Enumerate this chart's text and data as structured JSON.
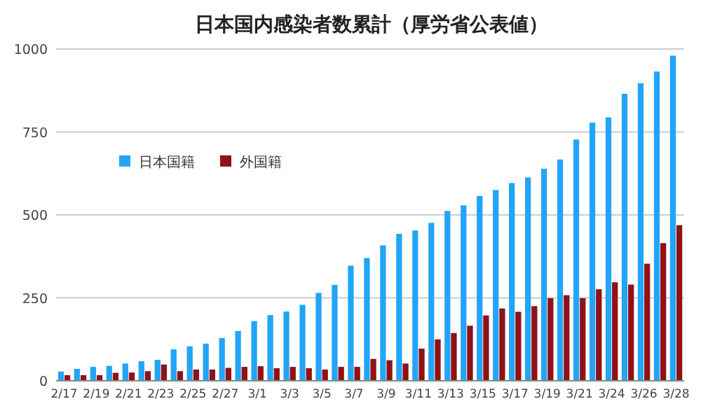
{
  "chart_data": {
    "type": "bar",
    "title": "日本国内感染者数累計（厚労省公表値）",
    "categories": [
      "2/17",
      null,
      "2/19",
      null,
      "2/21",
      null,
      "2/23",
      null,
      "2/25",
      null,
      "2/27",
      null,
      "3/1",
      null,
      "3/3",
      null,
      "3/5",
      null,
      "3/7",
      null,
      "3/9",
      null,
      "3/11",
      null,
      "3/13",
      null,
      "3/15",
      null,
      "3/17",
      null,
      "3/19",
      null,
      "3/21",
      null,
      "3/24",
      null,
      "3/26",
      null,
      "3/28"
    ],
    "series": [
      {
        "name": "日本国籍",
        "color": "#22a5f7",
        "values": [
          28,
          36,
          42,
          45,
          52,
          59,
          63,
          95,
          104,
          112,
          129,
          150,
          180,
          198,
          209,
          229,
          265,
          289,
          347,
          370,
          408,
          443,
          453,
          476,
          512,
          529,
          557,
          575,
          596,
          613,
          639,
          667,
          727,
          778,
          794,
          865,
          897,
          932,
          980
        ]
      },
      {
        "name": "外国籍",
        "color": "#8e1216",
        "values": [
          17,
          17,
          17,
          24,
          25,
          29,
          49,
          29,
          34,
          34,
          39,
          42,
          44,
          38,
          42,
          38,
          34,
          42,
          42,
          66,
          62,
          52,
          97,
          125,
          144,
          166,
          197,
          218,
          208,
          225,
          249,
          258,
          249,
          276,
          297,
          290,
          353,
          415,
          469
        ]
      }
    ],
    "ylim": [
      0,
      1000
    ],
    "yticks": [
      0,
      250,
      500,
      750,
      1000
    ],
    "grid": "y",
    "legend": "top left"
  }
}
